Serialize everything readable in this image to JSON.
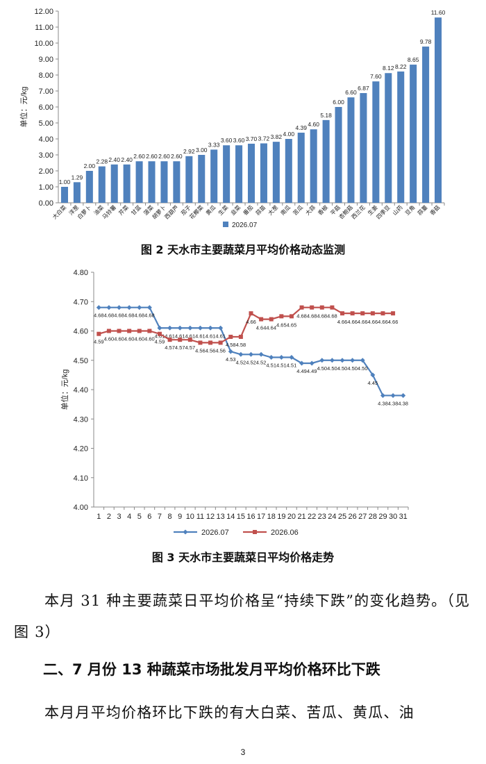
{
  "figure2": {
    "caption": "图 2   天水市主要蔬菜月平均价格动态监测",
    "chart_data": {
      "type": "bar",
      "ylabel": "单位：元/kg",
      "ylim": [
        0,
        12
      ],
      "yticks": [
        "0.00",
        "1.00",
        "2.00",
        "3.00",
        "4.00",
        "5.00",
        "6.00",
        "7.00",
        "8.00",
        "9.00",
        "10.00",
        "11.00",
        "12.00"
      ],
      "categories": [
        "大白菜",
        "洋葱",
        "白萝卜",
        "油菜",
        "马铃薯",
        "芹菜",
        "甘蓝",
        "菠菜",
        "胡萝卜",
        "西葫芦",
        "茄子",
        "花椰菜",
        "黄瓜",
        "生菜",
        "韭菜",
        "番茄",
        "蒜苗",
        "大葱",
        "南瓜",
        "苦瓜",
        "大蒜",
        "香椒",
        "平菇",
        "杏鲍菇",
        "西兰花",
        "生姜",
        "四季豆",
        "山药",
        "豆角",
        "蒜薹",
        "香菇"
      ],
      "values": [
        1.0,
        1.29,
        2.0,
        2.28,
        2.4,
        2.4,
        2.6,
        2.6,
        2.6,
        2.6,
        2.92,
        3.0,
        3.33,
        3.6,
        3.6,
        3.7,
        3.72,
        3.82,
        4.0,
        4.39,
        4.6,
        5.18,
        6.0,
        6.6,
        6.87,
        7.6,
        8.12,
        8.22,
        8.65,
        9.78,
        11.6
      ],
      "value_labels": [
        "1.00",
        "1.29",
        "2.00",
        "2.28",
        "2.40",
        "2.40",
        "2.60",
        "2.60",
        "2.60",
        "2.60",
        "2.92",
        "3.00",
        "3.33",
        "3.60",
        "3.60",
        "3.70",
        "3.72",
        "3.82",
        "4.00",
        "4.39",
        "4.60",
        "5.18",
        "6.00",
        "6.60",
        "6.87",
        "7.60",
        "8.12",
        "8.22",
        "8.65",
        "9.78",
        "11.60"
      ],
      "series_name": "2026.07",
      "legend": "bottom",
      "color": "#4f81bd",
      "grid": false
    }
  },
  "figure3": {
    "caption": "图 3   天水市主要蔬菜日平均价格走势",
    "chart_data": {
      "type": "line",
      "ylabel": "单位：元/kg",
      "ylim": [
        4.0,
        4.8
      ],
      "yticks": [
        "4.00",
        "4.10",
        "4.20",
        "4.30",
        "4.40",
        "4.50",
        "4.60",
        "4.70",
        "4.80"
      ],
      "x": [
        "1",
        "2",
        "3",
        "4",
        "5",
        "6",
        "7",
        "8",
        "9",
        "10",
        "11",
        "12",
        "13",
        "14",
        "15",
        "16",
        "17",
        "18",
        "19",
        "20",
        "21",
        "22",
        "23",
        "24",
        "25",
        "26",
        "27",
        "28",
        "29",
        "30",
        "31"
      ],
      "legend": "bottom",
      "grid": false,
      "series": [
        {
          "name": "2026.07",
          "color": "#4f81bd",
          "marker": "diamond",
          "values": [
            4.68,
            4.68,
            4.68,
            4.68,
            4.68,
            4.68,
            4.61,
            4.61,
            4.61,
            4.61,
            4.61,
            4.61,
            4.61,
            4.53,
            4.52,
            4.52,
            4.52,
            4.51,
            4.51,
            4.51,
            4.49,
            4.49,
            4.5,
            4.5,
            4.5,
            4.5,
            4.5,
            4.45,
            4.38,
            4.38,
            4.38
          ],
          "labels": [
            "4.68",
            "4.68",
            "4.68",
            "4.68",
            "4.68",
            "4.68",
            "4.61",
            "4.61",
            "4.61",
            "4.61",
            "4.61",
            "4.61",
            "4.61",
            "4.53",
            "4.52",
            "4.52",
            "4.52",
            "4.51",
            "4.51",
            "4.51",
            "4.49",
            "4.49",
            "4.50",
            "4.50",
            "4.50",
            "4.50",
            "4.50",
            "4.45",
            "4.38",
            "4.38",
            "4.38"
          ]
        },
        {
          "name": "2026.06",
          "color": "#c0504d",
          "marker": "square",
          "values": [
            4.59,
            4.6,
            4.6,
            4.6,
            4.6,
            4.6,
            4.59,
            4.57,
            4.57,
            4.57,
            4.56,
            4.56,
            4.56,
            4.58,
            4.58,
            4.66,
            4.64,
            4.64,
            4.65,
            4.65,
            4.68,
            4.68,
            4.68,
            4.68,
            4.66,
            4.66,
            4.66,
            4.66,
            4.66,
            4.66,
            null
          ],
          "labels": [
            "4.59",
            "4.60",
            "4.60",
            "4.60",
            "4.60",
            "4.60",
            "4.59",
            "4.57",
            "4.57",
            "4.57",
            "4.56",
            "4.56",
            "4.56",
            "4.58",
            "4.58",
            "4.66",
            "4.64",
            "4.64",
            "4.65",
            "4.65",
            "4.68",
            "4.68",
            "4.68",
            "4.68",
            "4.66",
            "4.66",
            "4.66",
            "4.66",
            "4.66",
            "4.66",
            ""
          ]
        }
      ]
    }
  },
  "paragraph1": "本月 31 种主要蔬菜日平均价格呈“持续下跌”的变化趋势。（见图 3）",
  "heading2": "二、7 月份 13 种蔬菜市场批发月平均价格环比下跌",
  "paragraph2": "本月月平均价格环比下跌的有大白菜、苦瓜、黄瓜、油",
  "page_number": "3"
}
